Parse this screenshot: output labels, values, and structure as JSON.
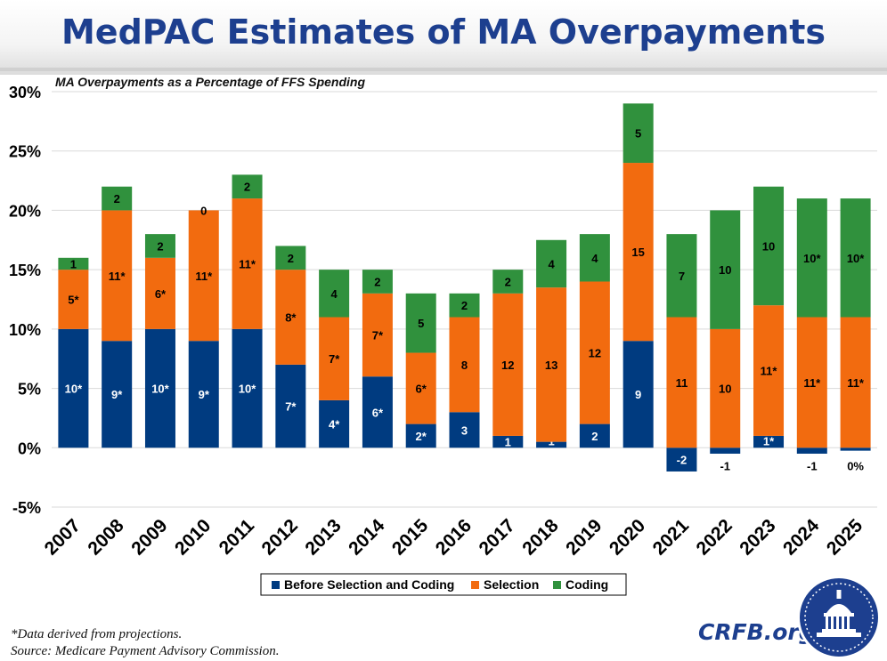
{
  "title": "MedPAC Estimates of MA Overpayments",
  "subtitle": "MA Overpayments as a Percentage of FFS Spending",
  "footnotes": {
    "note": "*Data derived from projections.",
    "source": "Source: Medicare Payment Advisory Commission."
  },
  "brand": "CRFB.org",
  "colors": {
    "before": "#003b80",
    "selection": "#f26b0f",
    "coding": "#30913d"
  },
  "chart_data": {
    "type": "bar",
    "stacked": true,
    "title": "MedPAC Estimates of MA Overpayments",
    "ylabel": "MA Overpayments as a Percentage of FFS Spending",
    "ylim": [
      -5,
      30
    ],
    "yticks": [
      "30%",
      "25%",
      "20%",
      "15%",
      "10%",
      "5%",
      "0%",
      "-5%"
    ],
    "grid": true,
    "legend_position": "bottom-center",
    "categories": [
      "2007",
      "2008",
      "2009",
      "2010",
      "2011",
      "2012",
      "2013",
      "2014",
      "2015",
      "2016",
      "2017",
      "2018",
      "2019",
      "2020",
      "2021",
      "2022",
      "2023",
      "2024",
      "2025"
    ],
    "series": [
      {
        "name": "Before Selection and Coding",
        "values": [
          10,
          9,
          10,
          9,
          10,
          7,
          4,
          6,
          2,
          3,
          1,
          0.5,
          2,
          9,
          -2,
          -0.5,
          1,
          -0.5,
          -0.25
        ],
        "labels": [
          "10*",
          "9*",
          "10*",
          "9*",
          "10*",
          "7*",
          "4*",
          "6*",
          "2*",
          "3",
          "1",
          "1",
          "2",
          "9",
          "-2",
          "-1",
          "1*",
          "-1",
          "0%"
        ]
      },
      {
        "name": "Selection",
        "values": [
          5,
          11,
          6,
          11,
          11,
          8,
          7,
          7,
          6,
          8,
          12,
          13,
          12,
          15,
          11,
          10,
          11,
          11,
          11
        ],
        "labels": [
          "5*",
          "11*",
          "6*",
          "11*",
          "11*",
          "8*",
          "7*",
          "7*",
          "6*",
          "8",
          "12",
          "13",
          "12",
          "15",
          "11",
          "10",
          "11*",
          "11*",
          "11*"
        ]
      },
      {
        "name": "Coding",
        "values": [
          1,
          2,
          2,
          0,
          2,
          2,
          4,
          2,
          5,
          2,
          2,
          4,
          4,
          5,
          7,
          10,
          10,
          10,
          10
        ],
        "labels": [
          "1",
          "2",
          "2",
          "0",
          "2",
          "2",
          "4",
          "2",
          "5",
          "2",
          "2",
          "4",
          "4",
          "5",
          "7",
          "10",
          "10",
          "10*",
          "10*"
        ]
      }
    ]
  }
}
